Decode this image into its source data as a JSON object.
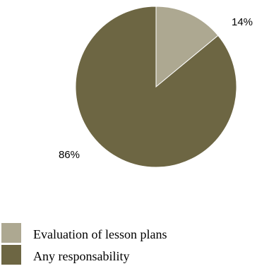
{
  "chart_data": {
    "type": "pie",
    "categories": [
      "Evaluation of lesson plans",
      "Any responsability"
    ],
    "values": [
      14,
      86
    ],
    "labels": [
      "14%",
      "86%"
    ],
    "colors": [
      "#ada891",
      "#6d6643"
    ],
    "title": "",
    "legend": {
      "position": "bottom-left",
      "entries": [
        "Evaluation of lesson plans",
        "Any responsability"
      ]
    }
  }
}
